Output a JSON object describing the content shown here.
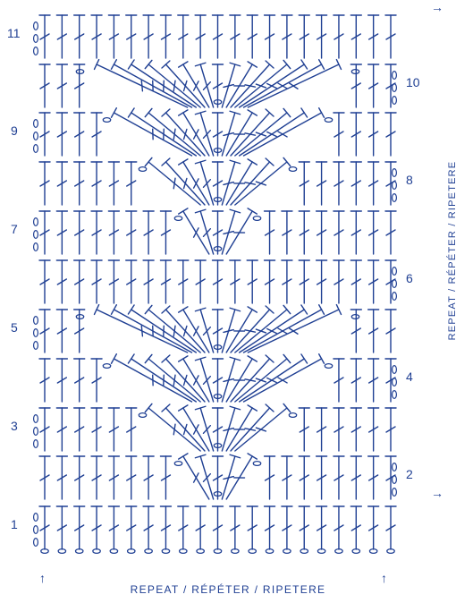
{
  "diagram": {
    "color": "#1f3f93",
    "rows": [
      {
        "number": "1",
        "side": "left"
      },
      {
        "number": "2",
        "side": "right"
      },
      {
        "number": "3",
        "side": "left"
      },
      {
        "number": "4",
        "side": "right"
      },
      {
        "number": "5",
        "side": "left"
      },
      {
        "number": "6",
        "side": "right"
      },
      {
        "number": "7",
        "side": "left"
      },
      {
        "number": "8",
        "side": "right"
      },
      {
        "number": "9",
        "side": "left"
      },
      {
        "number": "10",
        "side": "right"
      },
      {
        "number": "11",
        "side": "left"
      }
    ],
    "chain_count": 21,
    "repeat_label_bottom": "REPEAT / RÉPÉTER / RIPETERE",
    "repeat_label_side": "REPEAT / RÉPÉTER / RIPETERE",
    "arrows": {
      "bottom_left": "↑",
      "bottom_right": "↑",
      "side_top": "→",
      "side_bottom": "→"
    }
  }
}
